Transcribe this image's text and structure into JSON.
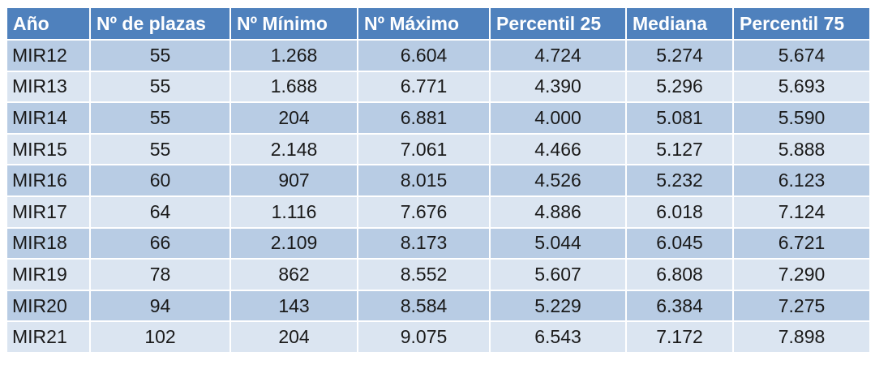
{
  "table": {
    "headers": [
      "Año",
      "Nº de plazas",
      "Nº Mínimo",
      "Nº Máximo",
      "Percentil 25",
      "Mediana",
      "Percentil 75"
    ],
    "rows": [
      [
        "MIR12",
        "55",
        "1.268",
        "6.604",
        "4.724",
        "5.274",
        "5.674"
      ],
      [
        "MIR13",
        "55",
        "1.688",
        "6.771",
        "4.390",
        "5.296",
        "5.693"
      ],
      [
        "MIR14",
        "55",
        "204",
        "6.881",
        "4.000",
        "5.081",
        "5.590"
      ],
      [
        "MIR15",
        "55",
        "2.148",
        "7.061",
        "4.466",
        "5.127",
        "5.888"
      ],
      [
        "MIR16",
        "60",
        "907",
        "8.015",
        "4.526",
        "5.232",
        "6.123"
      ],
      [
        "MIR17",
        "64",
        "1.116",
        "7.676",
        "4.886",
        "6.018",
        "7.124"
      ],
      [
        "MIR18",
        "66",
        "2.109",
        "8.173",
        "5.044",
        "6.045",
        "6.721"
      ],
      [
        "MIR19",
        "78",
        "862",
        "8.552",
        "5.607",
        "6.808",
        "7.290"
      ],
      [
        "MIR20",
        "94",
        "143",
        "8.584",
        "5.229",
        "6.384",
        "7.275"
      ],
      [
        "MIR21",
        "102",
        "204",
        "9.075",
        "6.543",
        "7.172",
        "7.898"
      ]
    ]
  },
  "colors": {
    "header_bg": "#4f81bd",
    "row_dark": "#b8cce4",
    "row_light": "#dbe5f1"
  }
}
